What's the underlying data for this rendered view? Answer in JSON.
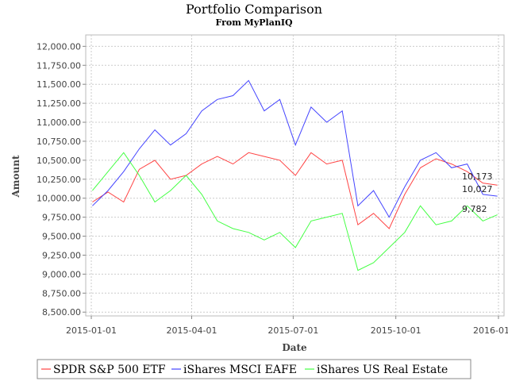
{
  "chart_data": {
    "type": "line",
    "title": "Portfolio Comparison",
    "subtitle": "From MyPlanIQ",
    "xlabel": "Date",
    "ylabel": "Amount",
    "xlim": [
      "2014-12-27",
      "2016-01-06"
    ],
    "ylim": [
      8450,
      12150
    ],
    "y_ticks": [
      8500,
      8750,
      9000,
      9250,
      9500,
      9750,
      10000,
      10250,
      10500,
      10750,
      11000,
      11250,
      11500,
      11750,
      12000
    ],
    "y_tick_labels": [
      "8,500.00",
      "8,750.00",
      "9,000.00",
      "9,250.00",
      "9,500.00",
      "9,750.00",
      "10,000.00",
      "10,250.00",
      "10,500.00",
      "10,750.00",
      "11,000.00",
      "11,250.00",
      "11,500.00",
      "11,750.00",
      "12,000.00"
    ],
    "x_ticks": [
      "2015-01-01",
      "2015-04-01",
      "2015-07-01",
      "2015-10-01",
      "2016-01-01"
    ],
    "grid": true,
    "legend": "bottom",
    "series": [
      {
        "name": "SPDR S&P 500 ETF",
        "color": "#ff4444",
        "points": [
          [
            "2015-01-02",
            9950
          ],
          [
            "2015-01-16",
            10080
          ],
          [
            "2015-01-30",
            9950
          ],
          [
            "2015-02-13",
            10380
          ],
          [
            "2015-02-27",
            10500
          ],
          [
            "2015-03-13",
            10250
          ],
          [
            "2015-03-27",
            10300
          ],
          [
            "2015-04-10",
            10450
          ],
          [
            "2015-04-24",
            10550
          ],
          [
            "2015-05-08",
            10450
          ],
          [
            "2015-05-22",
            10600
          ],
          [
            "2015-06-05",
            10550
          ],
          [
            "2015-06-19",
            10500
          ],
          [
            "2015-07-03",
            10300
          ],
          [
            "2015-07-17",
            10600
          ],
          [
            "2015-07-31",
            10450
          ],
          [
            "2015-08-14",
            10500
          ],
          [
            "2015-08-28",
            9650
          ],
          [
            "2015-09-11",
            9800
          ],
          [
            "2015-09-25",
            9600
          ],
          [
            "2015-10-09",
            10050
          ],
          [
            "2015-10-23",
            10400
          ],
          [
            "2015-11-06",
            10520
          ],
          [
            "2015-11-20",
            10450
          ],
          [
            "2015-12-04",
            10350
          ],
          [
            "2015-12-18",
            10200
          ],
          [
            "2015-12-31",
            10173
          ]
        ]
      },
      {
        "name": "iShares MSCI EAFE",
        "color": "#4444ff",
        "points": [
          [
            "2015-01-02",
            9900
          ],
          [
            "2015-01-16",
            10100
          ],
          [
            "2015-01-30",
            10350
          ],
          [
            "2015-02-13",
            10650
          ],
          [
            "2015-02-27",
            10900
          ],
          [
            "2015-03-13",
            10700
          ],
          [
            "2015-03-27",
            10850
          ],
          [
            "2015-04-10",
            11150
          ],
          [
            "2015-04-24",
            11300
          ],
          [
            "2015-05-08",
            11350
          ],
          [
            "2015-05-22",
            11550
          ],
          [
            "2015-06-05",
            11150
          ],
          [
            "2015-06-19",
            11300
          ],
          [
            "2015-07-03",
            10700
          ],
          [
            "2015-07-17",
            11200
          ],
          [
            "2015-07-31",
            11000
          ],
          [
            "2015-08-14",
            11150
          ],
          [
            "2015-08-28",
            9900
          ],
          [
            "2015-09-11",
            10100
          ],
          [
            "2015-09-25",
            9750
          ],
          [
            "2015-10-09",
            10150
          ],
          [
            "2015-10-23",
            10500
          ],
          [
            "2015-11-06",
            10600
          ],
          [
            "2015-11-20",
            10400
          ],
          [
            "2015-12-04",
            10450
          ],
          [
            "2015-12-18",
            10050
          ],
          [
            "2015-12-31",
            10027
          ]
        ]
      },
      {
        "name": "iShares US Real Estate",
        "color": "#44ff44",
        "points": [
          [
            "2015-01-02",
            10100
          ],
          [
            "2015-01-16",
            10350
          ],
          [
            "2015-01-30",
            10600
          ],
          [
            "2015-02-13",
            10300
          ],
          [
            "2015-02-27",
            9950
          ],
          [
            "2015-03-13",
            10100
          ],
          [
            "2015-03-27",
            10300
          ],
          [
            "2015-04-10",
            10050
          ],
          [
            "2015-04-24",
            9700
          ],
          [
            "2015-05-08",
            9600
          ],
          [
            "2015-05-22",
            9550
          ],
          [
            "2015-06-05",
            9450
          ],
          [
            "2015-06-19",
            9550
          ],
          [
            "2015-07-03",
            9350
          ],
          [
            "2015-07-17",
            9700
          ],
          [
            "2015-07-31",
            9750
          ],
          [
            "2015-08-14",
            9800
          ],
          [
            "2015-08-28",
            9050
          ],
          [
            "2015-09-11",
            9150
          ],
          [
            "2015-09-25",
            9350
          ],
          [
            "2015-10-09",
            9550
          ],
          [
            "2015-10-23",
            9900
          ],
          [
            "2015-11-06",
            9650
          ],
          [
            "2015-11-20",
            9700
          ],
          [
            "2015-12-04",
            9900
          ],
          [
            "2015-12-18",
            9700
          ],
          [
            "2015-12-31",
            9782
          ]
        ]
      }
    ],
    "end_labels": [
      "10,173",
      "10,027",
      "9,782"
    ]
  }
}
